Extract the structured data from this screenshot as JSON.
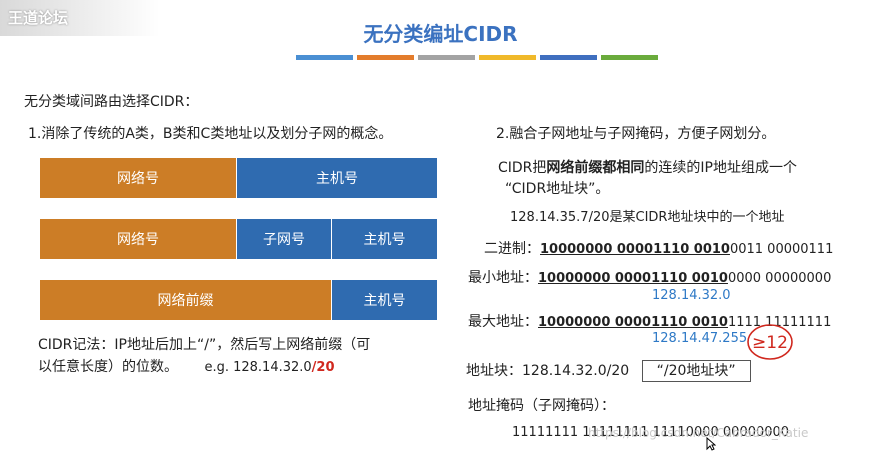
{
  "logo": "王道论坛",
  "title": "无分类编址CIDR",
  "stripe_colors": [
    "#4a8fd3",
    "#e37c2c",
    "#a3a3a3",
    "#f0b92a",
    "#3f6fbf",
    "#6aab3c"
  ],
  "intro": "无分类域间路由选择CIDR：",
  "point1": "1.消除了传统的A类，B类和C类地址以及划分子网的概念。",
  "bars": {
    "bar1": {
      "network": "网络号",
      "host": "主机号"
    },
    "bar2": {
      "network": "网络号",
      "subnet": "子网号",
      "host": "主机号"
    },
    "bar3": {
      "prefix": "网络前缀",
      "host": "主机号"
    }
  },
  "notation": {
    "line1": "CIDR记法：IP地址后加上“/”，然后写上网络前缀（可",
    "line2": "以任意长度）的位数。",
    "example_prefix": "e.g. 128.14.32.0",
    "example_suffix": "/20"
  },
  "point2": "2.融合子网地址与子网掩码，方便子网划分。",
  "cidr_block_desc": {
    "part1": "CIDR把",
    "bold": "网络前缀都相同",
    "part2": "的连续的IP地址组成一个",
    "line2": "“CIDR地址块”。"
  },
  "example_line": "128.14.35.7/20是某CIDR地址块中的一个地址",
  "binary": {
    "label": "二进制：",
    "underlined": "10000000  00001110  0010",
    "rest": "0011  00000111"
  },
  "min_addr": {
    "label": "最小地址：",
    "underlined": "10000000  00001110  0010",
    "rest": "0000  00000000",
    "decimal": "128.14.32.0"
  },
  "max_addr": {
    "label": "最大地址：",
    "underlined": "10000000  00001110  0010",
    "rest": "1111  11111111",
    "decimal": "128.14.47.255"
  },
  "annotation": "≥12",
  "address_block": {
    "label": "地址块：128.14.32.0/20",
    "boxed": "“/20地址块”"
  },
  "mask": {
    "label": "地址掩码（子网掩码）：",
    "value": "11111111  11111111  11110000  00000000"
  },
  "watermark": "https://blog.csdn.net/Cabrador_Katie"
}
